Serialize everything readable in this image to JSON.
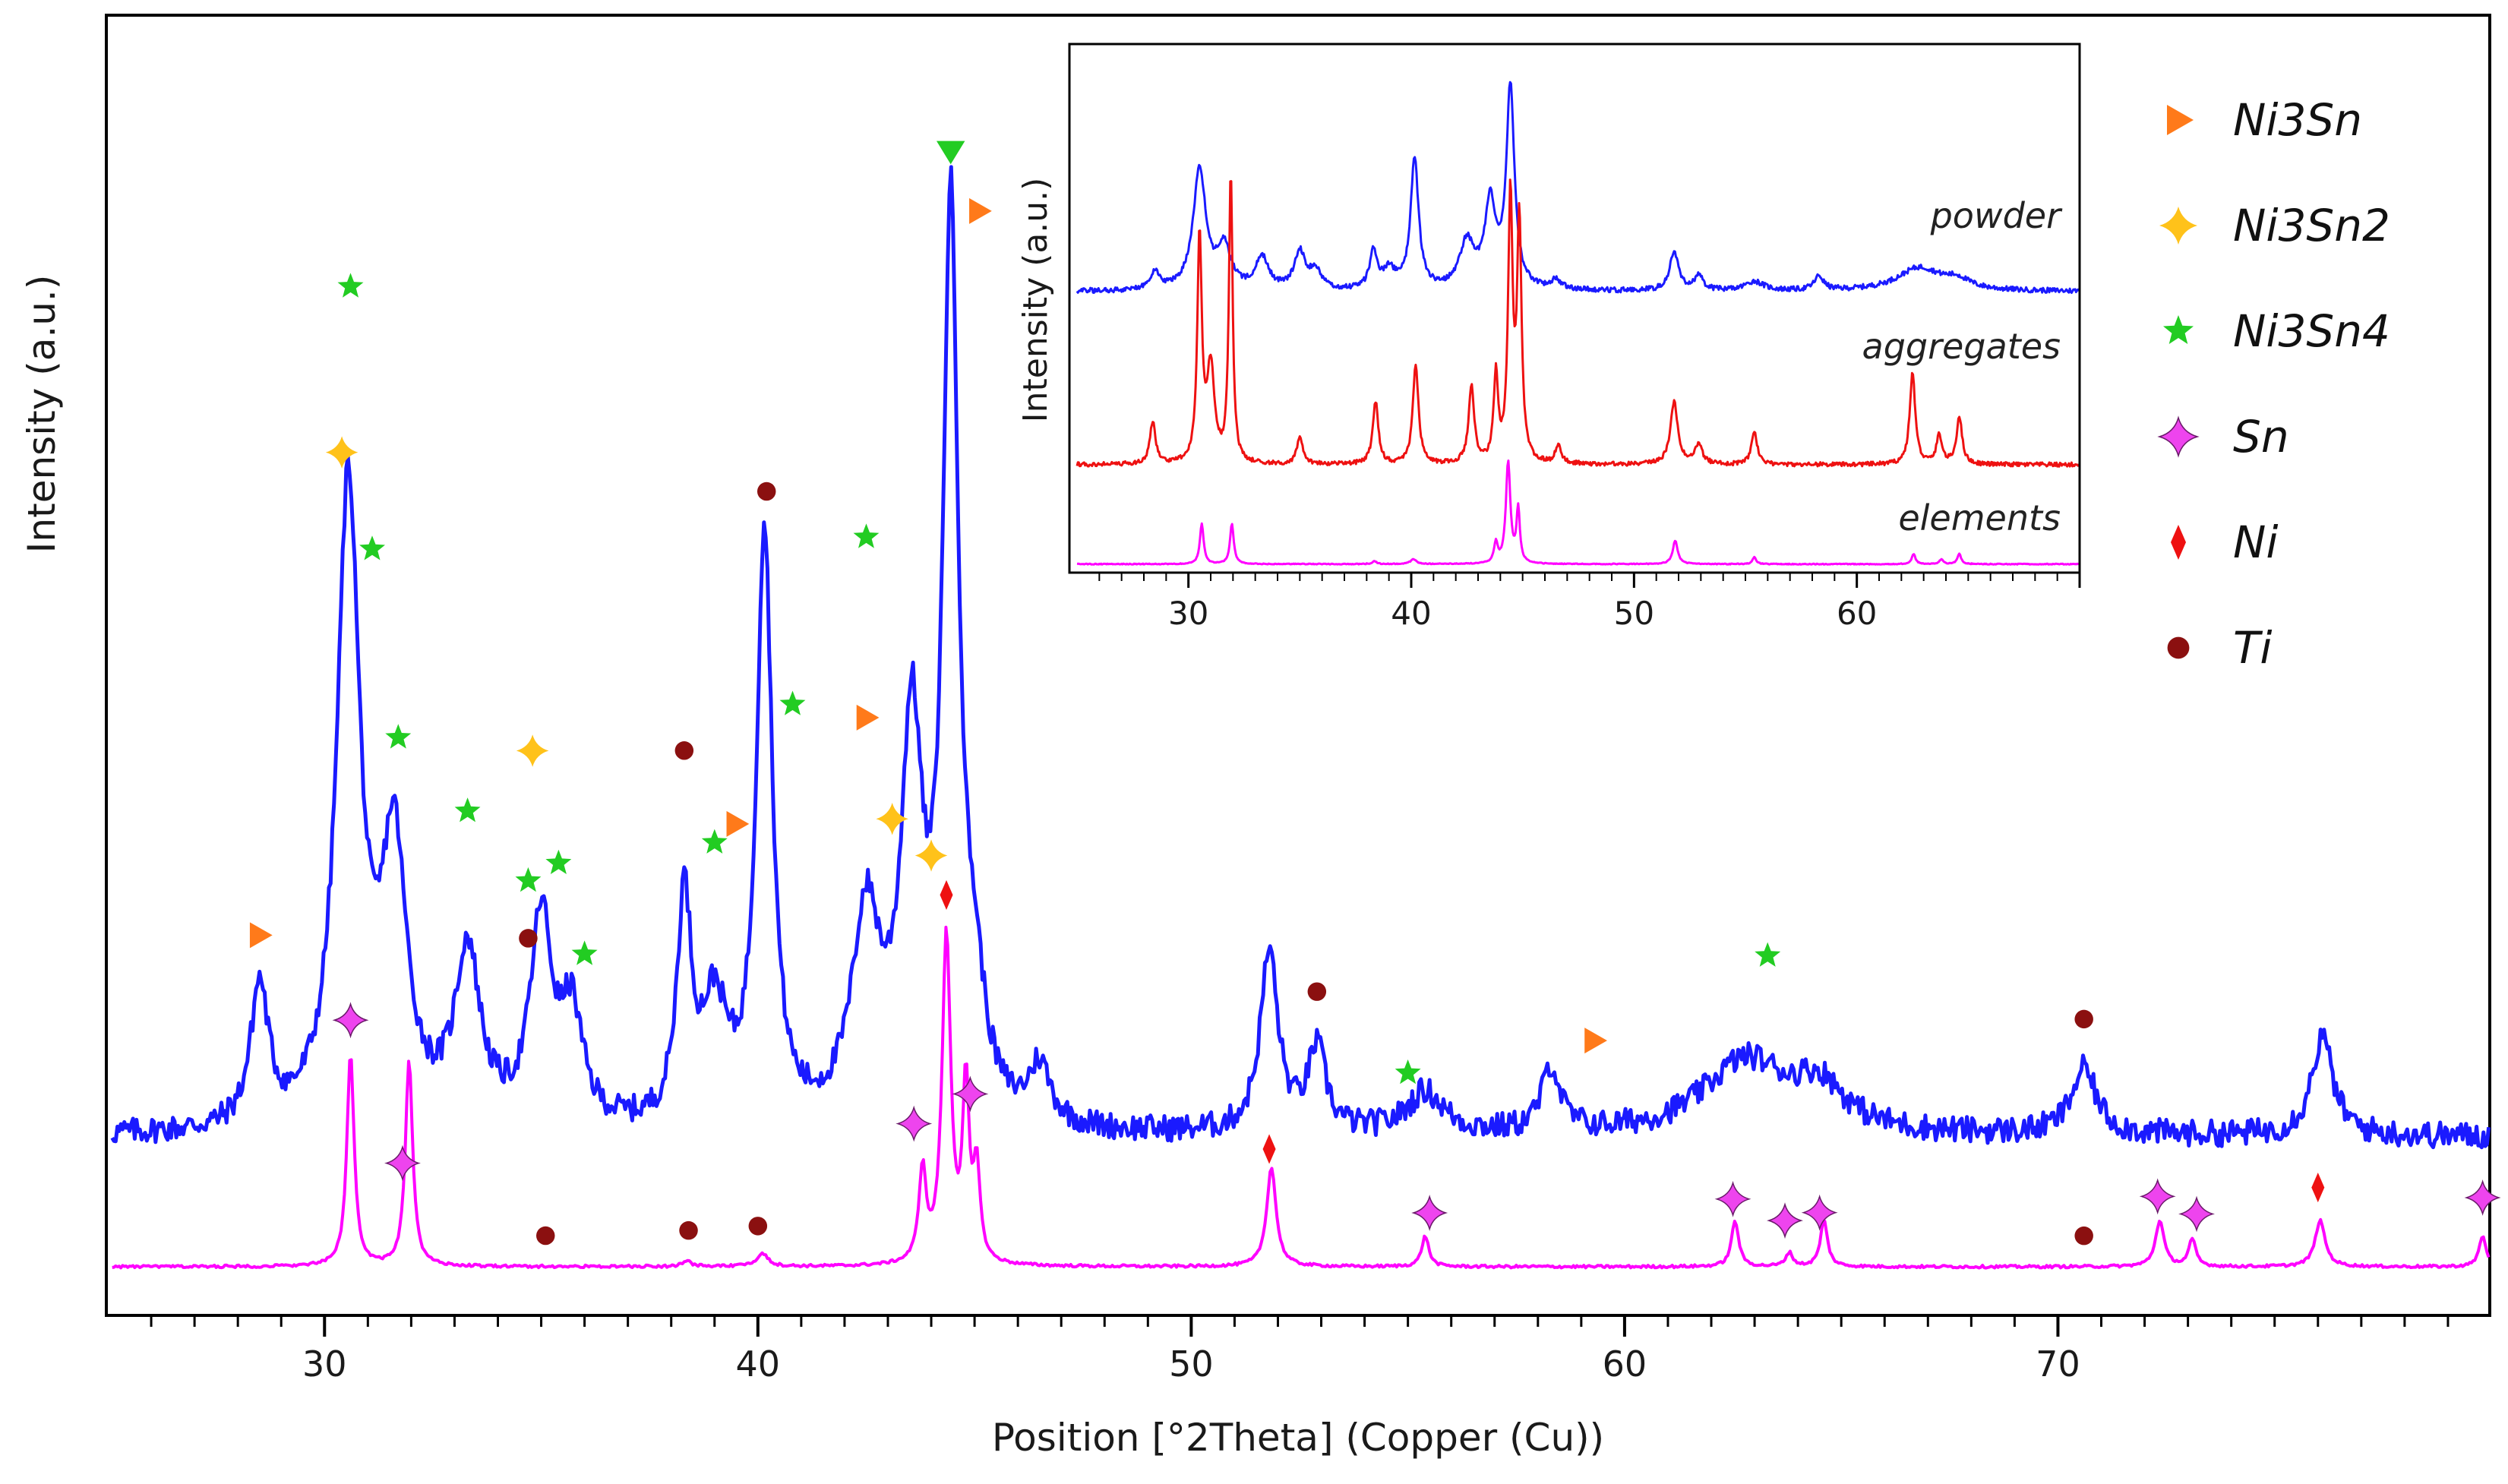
{
  "chart_data": [
    {
      "type": "line",
      "title": "",
      "xlabel": "Position [°2Theta] (Copper (Cu))",
      "ylabel": "Intensity (a.u.)",
      "xlim": [
        25,
        80
      ],
      "xticks": [
        30,
        40,
        50,
        60,
        70
      ],
      "xtick_labels": [
        "30",
        "40",
        "50",
        "60",
        "70"
      ],
      "ylim": [
        0,
        100
      ],
      "series": [
        {
          "name": "powder",
          "color": "#1a1aff",
          "baseline": 18,
          "peaks": [
            [
              28.5,
              17,
              0.25
            ],
            [
              30.55,
              78,
              0.32
            ],
            [
              31.6,
              33,
              0.35
            ],
            [
              33.3,
              21,
              0.35
            ],
            [
              35.0,
              25,
              0.3
            ],
            [
              35.7,
              13,
              0.3
            ],
            [
              38.3,
              27,
              0.2
            ],
            [
              39.0,
              14,
              0.35
            ],
            [
              40.15,
              72,
              0.22
            ],
            [
              42.5,
              25,
              0.4
            ],
            [
              43.55,
              46,
              0.3
            ],
            [
              44.45,
              108,
              0.22
            ],
            [
              45.0,
              12,
              0.3
            ],
            [
              46.5,
              7,
              0.3
            ],
            [
              51.8,
              22,
              0.25
            ],
            [
              52.9,
              10,
              0.25
            ],
            [
              55.4,
              5,
              0.5
            ],
            [
              58.3,
              8,
              0.25
            ],
            [
              62.8,
              9,
              1.2
            ],
            [
              64.5,
              5,
              0.7
            ],
            [
              70.6,
              8,
              0.35
            ],
            [
              76.1,
              12,
              0.3
            ]
          ]
        },
        {
          "name": "elements",
          "color": "#ff00ff",
          "baseline": 0,
          "peaks": [
            [
              30.6,
              28,
              0.1
            ],
            [
              31.95,
              27,
              0.1
            ],
            [
              38.35,
              0.8,
              0.12
            ],
            [
              40.1,
              1.8,
              0.15
            ],
            [
              43.8,
              12,
              0.1
            ],
            [
              44.35,
              43,
              0.12
            ],
            [
              44.8,
              23,
              0.09
            ],
            [
              45.05,
              12,
              0.09
            ],
            [
              51.85,
              13,
              0.13
            ],
            [
              55.4,
              4,
              0.1
            ],
            [
              62.55,
              6,
              0.1
            ],
            [
              63.8,
              1.8,
              0.1
            ],
            [
              64.6,
              6,
              0.1
            ],
            [
              72.35,
              6,
              0.12
            ],
            [
              73.1,
              3.5,
              0.1
            ],
            [
              76.05,
              6,
              0.14
            ],
            [
              79.8,
              4,
              0.1
            ]
          ]
        }
      ],
      "legend": {
        "position": "right",
        "entries": [
          {
            "label": "Ni3Sn",
            "base": "Ni",
            "sub1": "3",
            "mid": "Sn",
            "sub2": "",
            "marker": "triangle-right",
            "color": "#ff7a1a"
          },
          {
            "label": "Ni3Sn2",
            "base": "Ni",
            "sub1": "3",
            "mid": "Sn",
            "sub2": "2",
            "marker": "sparkle",
            "color": "#ffc21a"
          },
          {
            "label": "Ni3Sn4",
            "base": "Ni",
            "sub1": "3",
            "mid": "Sn",
            "sub2": "4",
            "marker": "star",
            "color": "#22cc22"
          },
          {
            "label": "Sn",
            "base": "Sn",
            "sub1": "",
            "mid": "",
            "sub2": "",
            "marker": "sparkle",
            "color": "#ee44ee"
          },
          {
            "label": "Ni",
            "base": "Ni",
            "sub1": "",
            "mid": "",
            "sub2": "",
            "marker": "diamond",
            "color": "#ee1111"
          },
          {
            "label": "Ti",
            "base": "Ti",
            "sub1": "",
            "mid": "",
            "sub2": "",
            "marker": "circle",
            "color": "#8b1010"
          }
        ]
      },
      "annotations": [
        {
          "phase": "Ni3Sn",
          "x": 28.5,
          "on": "powder",
          "dy": 5
        },
        {
          "phase": "Ni3Sn",
          "x": 39.5,
          "on": "powder",
          "dy": 24
        },
        {
          "phase": "Ni3Sn",
          "x": 42.5,
          "on": "powder",
          "dy": 20
        },
        {
          "phase": "Ni3Sn",
          "x": 45.1,
          "on": "powder",
          "dy": 88
        },
        {
          "phase": "Ni3Sn",
          "x": 59.3,
          "on": "powder",
          "dy": 10
        },
        {
          "phase": "Ni3Sn2",
          "x": 30.4,
          "on": "powder",
          "dy": 16
        },
        {
          "phase": "Ni3Sn2",
          "x": 34.8,
          "on": "powder",
          "dy": 26
        },
        {
          "phase": "Ni3Sn2",
          "x": 43.1,
          "on": "powder",
          "dy": 13
        },
        {
          "phase": "Ni3Sn2",
          "x": 44.0,
          "on": "powder",
          "dy": -4
        },
        {
          "phase": "Ni3Sn4",
          "x": 30.6,
          "on": "powder",
          "dy": 23
        },
        {
          "phase": "Ni3Sn4",
          "x": 31.1,
          "on": "powder",
          "dy": 40
        },
        {
          "phase": "Ni3Sn4",
          "x": 31.7,
          "on": "powder",
          "dy": 11
        },
        {
          "phase": "Ni3Sn4",
          "x": 33.3,
          "on": "powder",
          "dy": 15
        },
        {
          "phase": "Ni3Sn4",
          "x": 34.7,
          "on": "powder",
          "dy": 15
        },
        {
          "phase": "Ni3Sn4",
          "x": 35.4,
          "on": "powder",
          "dy": 16
        },
        {
          "phase": "Ni3Sn4",
          "x": 36.0,
          "on": "powder",
          "dy": 12
        },
        {
          "phase": "Ni3Sn4",
          "x": 39.0,
          "on": "powder",
          "dy": 16
        },
        {
          "phase": "Ni3Sn4",
          "x": 40.8,
          "on": "powder",
          "dy": 42
        },
        {
          "phase": "Ni3Sn4",
          "x": 42.5,
          "on": "powder",
          "dy": 42
        },
        {
          "phase": "Ni3Sn4",
          "x": 55.0,
          "on": "powder",
          "dy": 4
        },
        {
          "phase": "Ni3Sn4",
          "x": 63.3,
          "on": "powder",
          "dy": 13
        },
        {
          "phase": "Ni3Sn4",
          "x": 44.45,
          "on": "powder",
          "dy": 3,
          "marker": "triangle-down"
        },
        {
          "phase": "Ti",
          "x": 34.7,
          "on": "powder",
          "dy": 8
        },
        {
          "phase": "Ti",
          "x": 38.3,
          "on": "powder",
          "dy": 15
        },
        {
          "phase": "Ti",
          "x": 40.2,
          "on": "powder",
          "dy": 7
        },
        {
          "phase": "Ti",
          "x": 52.9,
          "on": "powder",
          "dy": 6
        },
        {
          "phase": "Ti",
          "x": 70.6,
          "on": "powder",
          "dy": 6
        },
        {
          "phase": "Ti",
          "x": 35.1,
          "on": "elements",
          "dy": 4
        },
        {
          "phase": "Ti",
          "x": 38.4,
          "on": "elements",
          "dy": 4
        },
        {
          "phase": "Ti",
          "x": 40.0,
          "on": "elements",
          "dy": 4
        },
        {
          "phase": "Ti",
          "x": 70.6,
          "on": "elements",
          "dy": 4
        },
        {
          "phase": "Sn",
          "x": 30.6,
          "on": "elements",
          "dy": 4
        },
        {
          "phase": "Sn",
          "x": 31.8,
          "on": "elements",
          "dy": 5
        },
        {
          "phase": "Sn",
          "x": 43.6,
          "on": "elements",
          "dy": 15
        },
        {
          "phase": "Sn",
          "x": 44.9,
          "on": "elements",
          "dy": 7
        },
        {
          "phase": "Sn",
          "x": 55.5,
          "on": "elements",
          "dy": 5
        },
        {
          "phase": "Sn",
          "x": 62.5,
          "on": "elements",
          "dy": 4
        },
        {
          "phase": "Sn",
          "x": 63.7,
          "on": "elements",
          "dy": 5
        },
        {
          "phase": "Sn",
          "x": 64.5,
          "on": "elements",
          "dy": 4
        },
        {
          "phase": "Sn",
          "x": 72.3,
          "on": "elements",
          "dy": 4
        },
        {
          "phase": "Sn",
          "x": 73.2,
          "on": "elements",
          "dy": 5
        },
        {
          "phase": "Sn",
          "x": 79.8,
          "on": "elements",
          "dy": 5
        },
        {
          "phase": "Ni",
          "x": 44.35,
          "on": "elements",
          "dy": 4
        },
        {
          "phase": "Ni",
          "x": 51.8,
          "on": "elements",
          "dy": 4
        },
        {
          "phase": "Ni",
          "x": 76.0,
          "on": "elements",
          "dy": 5
        }
      ]
    },
    {
      "type": "line",
      "name": "inset",
      "xlabel": "",
      "ylabel": "Intensity (a.u.)",
      "xlim": [
        25,
        70
      ],
      "xticks": [
        30,
        40,
        50,
        60
      ],
      "xtick_labels": [
        "30",
        "40",
        "50",
        "60"
      ],
      "ylim": [
        0,
        100
      ],
      "series": [
        {
          "name": "powder",
          "label": "powder",
          "color": "#1a1aff",
          "baseline": 59,
          "peaks": [
            [
              28.5,
              4,
              0.25
            ],
            [
              30.5,
              26,
              0.35
            ],
            [
              31.6,
              9,
              0.35
            ],
            [
              33.3,
              7,
              0.35
            ],
            [
              35.0,
              8,
              0.3
            ],
            [
              35.7,
              4,
              0.3
            ],
            [
              38.3,
              8,
              0.2
            ],
            [
              39.0,
              4,
              0.35
            ],
            [
              40.15,
              28,
              0.22
            ],
            [
              42.5,
              10,
              0.4
            ],
            [
              43.55,
              18,
              0.3
            ],
            [
              44.45,
              43,
              0.22
            ],
            [
              46.5,
              2,
              0.3
            ],
            [
              51.8,
              8,
              0.25
            ],
            [
              52.9,
              3,
              0.25
            ],
            [
              55.4,
              2,
              0.5
            ],
            [
              58.3,
              3,
              0.25
            ],
            [
              62.8,
              5,
              1.2
            ],
            [
              64.5,
              2,
              0.7
            ]
          ]
        },
        {
          "name": "aggregates",
          "label": "aggregates",
          "color": "#ee1111",
          "baseline": 23,
          "peaks": [
            [
              28.4,
              9,
              0.15
            ],
            [
              30.5,
              47,
              0.12
            ],
            [
              31.0,
              20,
              0.2
            ],
            [
              31.9,
              60,
              0.1
            ],
            [
              35.0,
              6,
              0.15
            ],
            [
              38.4,
              13,
              0.15
            ],
            [
              40.2,
              21,
              0.15
            ],
            [
              42.7,
              16,
              0.15
            ],
            [
              43.8,
              18,
              0.12
            ],
            [
              44.45,
              55,
              0.12
            ],
            [
              44.85,
              50,
              0.12
            ],
            [
              46.6,
              4,
              0.15
            ],
            [
              51.8,
              13,
              0.2
            ],
            [
              52.9,
              4,
              0.2
            ],
            [
              55.4,
              7,
              0.15
            ],
            [
              62.5,
              19,
              0.15
            ],
            [
              63.7,
              6,
              0.15
            ],
            [
              64.6,
              10,
              0.15
            ]
          ]
        },
        {
          "name": "elements",
          "label": "elements",
          "color": "#ff00ff",
          "baseline": 0.5,
          "peaks": [
            [
              30.6,
              12,
              0.1
            ],
            [
              31.95,
              12,
              0.1
            ],
            [
              38.35,
              0.8,
              0.12
            ],
            [
              40.1,
              1.5,
              0.15
            ],
            [
              43.8,
              6,
              0.1
            ],
            [
              44.35,
              30,
              0.12
            ],
            [
              44.8,
              16,
              0.09
            ],
            [
              51.85,
              7,
              0.13
            ],
            [
              55.4,
              2,
              0.1
            ],
            [
              62.55,
              3,
              0.1
            ],
            [
              63.8,
              1.5,
              0.1
            ],
            [
              64.6,
              3,
              0.1
            ]
          ]
        }
      ]
    }
  ]
}
